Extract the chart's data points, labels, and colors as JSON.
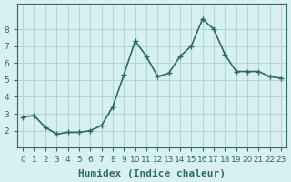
{
  "x": [
    0,
    1,
    2,
    3,
    4,
    5,
    6,
    7,
    8,
    9,
    10,
    11,
    12,
    13,
    14,
    15,
    16,
    17,
    18,
    19,
    20,
    21,
    22,
    23
  ],
  "y": [
    2.8,
    2.9,
    2.2,
    1.8,
    1.9,
    1.9,
    2.0,
    2.3,
    3.4,
    5.3,
    7.3,
    6.4,
    5.2,
    5.4,
    6.4,
    7.0,
    8.6,
    8.0,
    6.5,
    5.5,
    5.5,
    5.5,
    5.2,
    5.1
  ],
  "line_color": "#2e6b5e",
  "marker": "+",
  "bg_color": "#d9f0f0",
  "grid_color": "#b0d8d8",
  "xlabel": "Humidex (Indice chaleur)",
  "ylabel": "",
  "xlim": [
    -0.5,
    23.5
  ],
  "ylim": [
    1.0,
    9.5
  ],
  "yticks": [
    2,
    3,
    4,
    5,
    6,
    7,
    8
  ],
  "xtick_labels": [
    "0",
    "1",
    "2",
    "3",
    "4",
    "5",
    "6",
    "7",
    "8",
    "9",
    "10",
    "11",
    "12",
    "13",
    "14",
    "15",
    "16",
    "17",
    "18",
    "19",
    "20",
    "21",
    "22",
    "23"
  ],
  "xlabel_fontsize": 8,
  "ylabel_fontsize": 8,
  "tick_fontsize": 6.5,
  "axis_color": "#2e6b5e",
  "linewidth": 1.2
}
